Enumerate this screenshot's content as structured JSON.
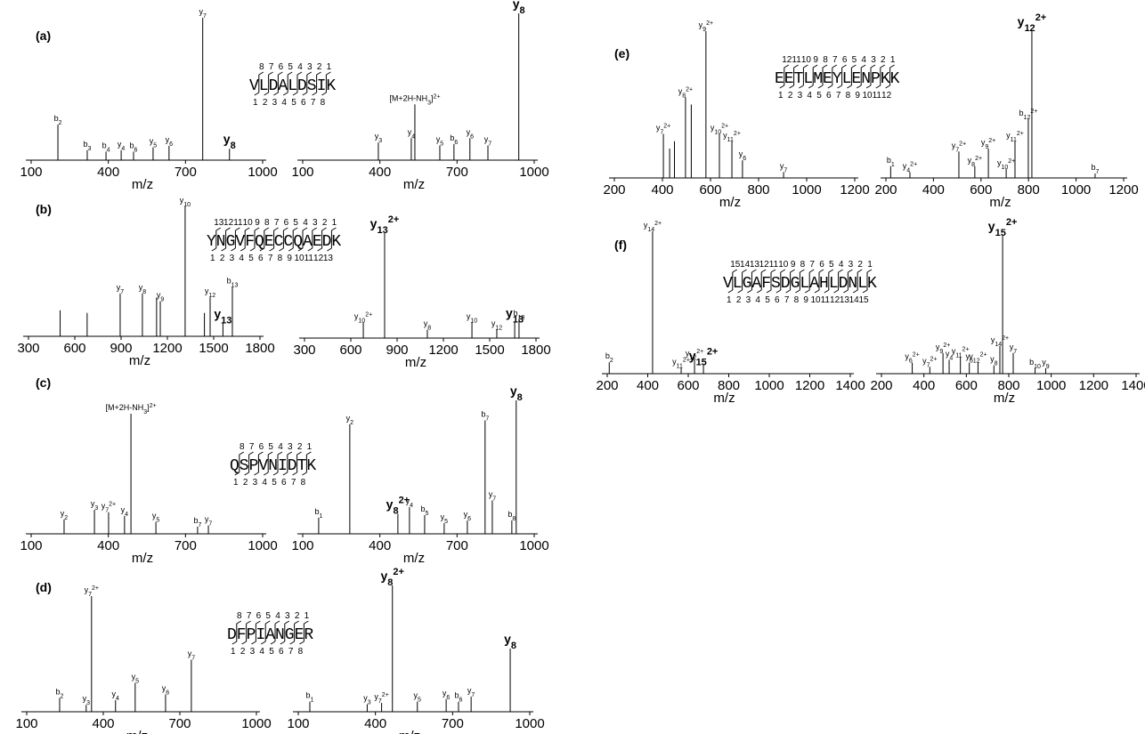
{
  "chart_data": [
    {
      "type": "spectrum",
      "panel": "(a)",
      "xlabel": "m/z",
      "xlim": [
        100,
        1000
      ],
      "xticks": [
        100,
        400,
        700,
        1000
      ],
      "ylim": [
        0,
        100
      ],
      "peaks": [
        {
          "x": 204,
          "y": 25,
          "ion": "b",
          "n": "2"
        },
        {
          "x": 318,
          "y": 7,
          "ion": "b",
          "n": "3"
        },
        {
          "x": 391,
          "y": 6,
          "ion": "b",
          "n": "4"
        },
        {
          "x": 450,
          "y": 7,
          "ion": "y",
          "n": "4"
        },
        {
          "x": 498,
          "y": 6,
          "ion": "b",
          "n": "6"
        },
        {
          "x": 574,
          "y": 9,
          "ion": "y",
          "n": "5"
        },
        {
          "x": 636,
          "y": 10,
          "ion": "y",
          "n": "6"
        },
        {
          "x": 767,
          "y": 100,
          "ion": "y",
          "n": "7"
        },
        {
          "x": 871,
          "y": 8,
          "ion": "y",
          "n": "8",
          "bold": true
        }
      ],
      "sequence": {
        "residues": "VLDALDSIK",
        "y_numbers": [
          8,
          7,
          6,
          5,
          4,
          3,
          2,
          1
        ],
        "b_numbers": [
          1,
          2,
          3,
          4,
          5,
          6,
          7,
          8
        ]
      }
    },
    {
      "type": "spectrum",
      "xlabel": "m/z",
      "xlim": [
        100,
        1000
      ],
      "xticks": [
        100,
        400,
        700,
        1000
      ],
      "ylim": [
        0,
        100
      ],
      "peaks": [
        {
          "x": 394,
          "y": 12,
          "ion": "y",
          "n": "3"
        },
        {
          "x": 522,
          "y": 15,
          "ion": "y",
          "n": "4"
        },
        {
          "x": 536,
          "y": 38,
          "ion": "[M+2H-NH",
          "n": "3",
          "after": "]",
          "charge": "2+"
        },
        {
          "x": 633,
          "y": 10,
          "ion": "y",
          "n": "5"
        },
        {
          "x": 688,
          "y": 11,
          "ion": "b",
          "n": "6"
        },
        {
          "x": 750,
          "y": 15,
          "ion": "y",
          "n": "6"
        },
        {
          "x": 820,
          "y": 10,
          "ion": "y",
          "n": "7"
        },
        {
          "x": 940,
          "y": 100,
          "ion": "y",
          "n": "8",
          "bold": true
        }
      ]
    },
    {
      "type": "spectrum",
      "panel": "(b)",
      "xlabel": "m/z",
      "xlim": [
        300,
        1800
      ],
      "xticks": [
        300,
        600,
        900,
        1200,
        1500,
        1800
      ],
      "ylim": [
        0,
        100
      ],
      "peaks": [
        {
          "x": 505,
          "y": 20
        },
        {
          "x": 680,
          "y": 18
        },
        {
          "x": 894,
          "y": 33,
          "ion": "y",
          "n": "7"
        },
        {
          "x": 1038,
          "y": 33,
          "ion": "y",
          "n": "8"
        },
        {
          "x": 1130,
          "y": 30
        },
        {
          "x": 1154,
          "y": 27,
          "ion": "y",
          "n": "9"
        },
        {
          "x": 1315,
          "y": 100,
          "ion": "y",
          "n": "10"
        },
        {
          "x": 1440,
          "y": 18
        },
        {
          "x": 1477,
          "y": 30,
          "ion": "y",
          "n": "12"
        },
        {
          "x": 1560,
          "y": 10,
          "ion": "y",
          "n": "13",
          "bold": true
        },
        {
          "x": 1621,
          "y": 38,
          "ion": "b",
          "n": "13"
        }
      ],
      "sequence": {
        "residues": "YNGVFQECCQAEDK",
        "y_numbers": [
          13,
          12,
          11,
          10,
          9,
          8,
          7,
          6,
          5,
          4,
          3,
          2,
          1
        ],
        "b_numbers": [
          1,
          2,
          3,
          4,
          5,
          6,
          7,
          8,
          9,
          10,
          11,
          12,
          13
        ]
      }
    },
    {
      "type": "spectrum",
      "xlabel": "m/z",
      "xlim": [
        300,
        1800
      ],
      "xticks": [
        300,
        600,
        900,
        1200,
        1500,
        1800
      ],
      "ylim": [
        0,
        100
      ],
      "peaks": [
        {
          "x": 681,
          "y": 15,
          "ion": "y",
          "n": "10",
          "charge": "2+"
        },
        {
          "x": 819,
          "y": 100,
          "ion": "y",
          "n": "13",
          "charge": "2+",
          "bold": true
        },
        {
          "x": 1096,
          "y": 8,
          "ion": "y",
          "n": "8"
        },
        {
          "x": 1385,
          "y": 15,
          "ion": "y",
          "n": "10"
        },
        {
          "x": 1546,
          "y": 8,
          "ion": "y",
          "n": "12"
        },
        {
          "x": 1662,
          "y": 15,
          "ion": "y",
          "n": "13",
          "bold": true
        },
        {
          "x": 1690,
          "y": 18,
          "ion": "b",
          "n": "13"
        }
      ]
    },
    {
      "type": "spectrum",
      "panel": "(c)",
      "xlabel": "m/z",
      "xlim": [
        100,
        1000
      ],
      "xticks": [
        100,
        400,
        700,
        1000
      ],
      "ylim": [
        0,
        100
      ],
      "peaks": [
        {
          "x": 228,
          "y": 12,
          "ion": "y",
          "n": "2"
        },
        {
          "x": 346,
          "y": 20,
          "ion": "y",
          "n": "3"
        },
        {
          "x": 401,
          "y": 18,
          "ion": "y",
          "n": "7",
          "charge": "2+"
        },
        {
          "x": 463,
          "y": 15,
          "ion": "y",
          "n": "4"
        },
        {
          "x": 488,
          "y": 100,
          "ion": "[M+2H-NH",
          "n": "3",
          "after": "]",
          "charge": "2+"
        },
        {
          "x": 585,
          "y": 10,
          "ion": "y",
          "n": "5"
        },
        {
          "x": 747,
          "y": 6,
          "ion": "b",
          "n": "7"
        },
        {
          "x": 789,
          "y": 7,
          "ion": "y",
          "n": "7"
        }
      ],
      "sequence": {
        "residues": "QSPVNIDTK",
        "y_numbers": [
          8,
          7,
          6,
          5,
          4,
          3,
          2,
          1
        ],
        "b_numbers": [
          1,
          2,
          3,
          4,
          5,
          6,
          7,
          8
        ]
      }
    },
    {
      "type": "spectrum",
      "xlabel": "m/z",
      "xlim": [
        100,
        1000
      ],
      "xticks": [
        100,
        400,
        700,
        1000
      ],
      "ylim": [
        0,
        100
      ],
      "peaks": [
        {
          "x": 162,
          "y": 12,
          "ion": "b",
          "n": "1"
        },
        {
          "x": 283,
          "y": 82,
          "ion": "y",
          "n": "2"
        },
        {
          "x": 470,
          "y": 15,
          "ion": "y",
          "n": "8",
          "charge": "2+",
          "bold": true
        },
        {
          "x": 515,
          "y": 20,
          "ion": "y",
          "n": "4"
        },
        {
          "x": 574,
          "y": 14,
          "ion": "b",
          "n": "5"
        },
        {
          "x": 650,
          "y": 8,
          "ion": "y",
          "n": "5"
        },
        {
          "x": 740,
          "y": 10,
          "ion": "y",
          "n": "6"
        },
        {
          "x": 809,
          "y": 85,
          "ion": "b",
          "n": "7"
        },
        {
          "x": 837,
          "y": 25,
          "ion": "y",
          "n": "7"
        },
        {
          "x": 913,
          "y": 10,
          "ion": "b",
          "n": "8"
        },
        {
          "x": 930,
          "y": 100,
          "ion": "y",
          "n": "8",
          "bold": true
        }
      ]
    },
    {
      "type": "spectrum",
      "panel": "(d)",
      "xlabel": "m/z",
      "xlim": [
        100,
        1000
      ],
      "xticks": [
        100,
        400,
        700,
        1000
      ],
      "ylim": [
        0,
        100
      ],
      "peaks": [
        {
          "x": 229,
          "y": 12,
          "ion": "b",
          "n": "2"
        },
        {
          "x": 333,
          "y": 6,
          "ion": "y",
          "n": "3"
        },
        {
          "x": 354,
          "y": 100,
          "ion": "y",
          "n": "7",
          "charge": "2+"
        },
        {
          "x": 448,
          "y": 10,
          "ion": "y",
          "n": "4"
        },
        {
          "x": 525,
          "y": 25,
          "ion": "y",
          "n": "5"
        },
        {
          "x": 644,
          "y": 15,
          "ion": "y",
          "n": "6"
        },
        {
          "x": 745,
          "y": 45,
          "ion": "y",
          "n": "7"
        }
      ],
      "sequence": {
        "residues": "DFPIANGER",
        "y_numbers": [
          8,
          7,
          6,
          5,
          4,
          3,
          2,
          1
        ],
        "b_numbers": [
          1,
          2,
          3,
          4,
          5,
          6,
          7,
          8
        ]
      }
    },
    {
      "type": "spectrum",
      "xlabel": "m/z",
      "xlim": [
        100,
        1000
      ],
      "xticks": [
        100,
        400,
        700,
        1000
      ],
      "ylim": [
        0,
        100
      ],
      "peaks": [
        {
          "x": 145,
          "y": 8,
          "ion": "b",
          "n": "1"
        },
        {
          "x": 368,
          "y": 6,
          "ion": "y",
          "n": "3"
        },
        {
          "x": 424,
          "y": 7,
          "ion": "y",
          "n": "7",
          "charge": "2+"
        },
        {
          "x": 466,
          "y": 100,
          "ion": "y",
          "n": "8",
          "charge": "2+",
          "bold": true
        },
        {
          "x": 563,
          "y": 8,
          "ion": "y",
          "n": "5"
        },
        {
          "x": 675,
          "y": 10,
          "ion": "y",
          "n": "6"
        },
        {
          "x": 723,
          "y": 8,
          "ion": "b",
          "n": "6"
        },
        {
          "x": 772,
          "y": 12,
          "ion": "y",
          "n": "7"
        },
        {
          "x": 924,
          "y": 50,
          "ion": "y",
          "n": "8",
          "bold": true
        }
      ]
    },
    {
      "type": "spectrum",
      "panel": "(e)",
      "xlabel": "m/z",
      "xlim": [
        200,
        1200
      ],
      "xticks": [
        200,
        400,
        600,
        800,
        1000,
        1200
      ],
      "ylim": [
        0,
        100
      ],
      "peaks": [
        {
          "x": 404,
          "y": 30,
          "ion": "y",
          "n": "7",
          "charge": "2+"
        },
        {
          "x": 430,
          "y": 20
        },
        {
          "x": 450,
          "y": 25
        },
        {
          "x": 496,
          "y": 55,
          "ion": "y",
          "n": "8",
          "charge": "2+"
        },
        {
          "x": 520,
          "y": 50
        },
        {
          "x": 581,
          "y": 100,
          "ion": "y",
          "n": "9",
          "charge": "2+"
        },
        {
          "x": 637,
          "y": 30,
          "ion": "y",
          "n": "10",
          "charge": "2+"
        },
        {
          "x": 689,
          "y": 25,
          "ion": "y",
          "n": "11",
          "charge": "2+"
        },
        {
          "x": 733,
          "y": 12,
          "ion": "y",
          "n": "6"
        },
        {
          "x": 904,
          "y": 4,
          "ion": "y",
          "n": "7"
        }
      ],
      "sequence": {
        "residues": "EETLMEYLENPKK",
        "y_numbers": [
          12,
          11,
          10,
          9,
          8,
          7,
          6,
          5,
          4,
          3,
          2,
          1
        ],
        "b_numbers": [
          1,
          2,
          3,
          4,
          5,
          6,
          7,
          8,
          9,
          10,
          11,
          12
        ]
      }
    },
    {
      "type": "spectrum",
      "xlabel": "m/z",
      "xlim": [
        200,
        1200
      ],
      "xticks": [
        200,
        400,
        600,
        800,
        1000,
        1200
      ],
      "ylim": [
        0,
        100
      ],
      "peaks": [
        {
          "x": 220,
          "y": 8,
          "ion": "b",
          "n": "1"
        },
        {
          "x": 301,
          "y": 4,
          "ion": "y",
          "n": "4",
          "charge": "2+"
        },
        {
          "x": 507,
          "y": 18,
          "ion": "y",
          "n": "7",
          "charge": "2+"
        },
        {
          "x": 574,
          "y": 8,
          "ion": "y",
          "n": "8",
          "charge": "2+"
        },
        {
          "x": 631,
          "y": 20,
          "ion": "y",
          "n": "9",
          "charge": "2+"
        },
        {
          "x": 706,
          "y": 6,
          "ion": "y",
          "n": "10",
          "charge": "2+"
        },
        {
          "x": 743,
          "y": 25,
          "ion": "y",
          "n": "11",
          "charge": "2+"
        },
        {
          "x": 799,
          "y": 40,
          "ion": "b",
          "n": "12",
          "charge": "2+"
        },
        {
          "x": 814,
          "y": 100,
          "ion": "y",
          "n": "12",
          "charge": "2+",
          "bold": true
        },
        {
          "x": 1080,
          "y": 3,
          "ion": "b",
          "n": "7"
        }
      ]
    },
    {
      "type": "spectrum",
      "panel": "(f)",
      "xlabel": "m/z",
      "xlim": [
        200,
        1400
      ],
      "xticks": [
        200,
        400,
        600,
        800,
        1000,
        1200,
        1400
      ],
      "ylim": [
        0,
        100
      ],
      "peaks": [
        {
          "x": 210,
          "y": 8,
          "ion": "b",
          "n": "2"
        },
        {
          "x": 424,
          "y": 100,
          "ion": "y",
          "n": "14",
          "charge": "2+"
        },
        {
          "x": 565,
          "y": 4,
          "ion": "y",
          "n": "11",
          "charge": "2+"
        },
        {
          "x": 631,
          "y": 10,
          "ion": "y",
          "n": "12",
          "charge": "2+"
        },
        {
          "x": 675,
          "y": 6,
          "ion": "y",
          "n": "15",
          "charge": "2+",
          "bold": true
        }
      ],
      "sequence": {
        "residues": "VLGAFSDGLAHLDNLK",
        "y_numbers": [
          15,
          14,
          13,
          12,
          11,
          10,
          9,
          8,
          7,
          6,
          5,
          4,
          3,
          2,
          1
        ],
        "b_numbers": [
          1,
          2,
          3,
          4,
          5,
          6,
          7,
          8,
          9,
          10,
          11,
          12,
          13,
          14,
          15
        ]
      }
    },
    {
      "type": "spectrum",
      "xlabel": "m/z",
      "xlim": [
        200,
        1400
      ],
      "xticks": [
        200,
        400,
        600,
        800,
        1000,
        1200,
        1400
      ],
      "ylim": [
        0,
        100
      ],
      "peaks": [
        {
          "x": 345,
          "y": 8,
          "ion": "y",
          "n": "6",
          "charge": "2+"
        },
        {
          "x": 428,
          "y": 5,
          "ion": "y",
          "n": "7",
          "charge": "2+"
        },
        {
          "x": 490,
          "y": 15,
          "ion": "y",
          "n": "9",
          "charge": "2+"
        },
        {
          "x": 519,
          "y": 10,
          "ion": "y",
          "n": "4"
        },
        {
          "x": 572,
          "y": 12,
          "ion": "y",
          "n": "11",
          "charge": "2+"
        },
        {
          "x": 614,
          "y": 8,
          "ion": "y",
          "n": "5"
        },
        {
          "x": 655,
          "y": 8,
          "ion": "y",
          "n": "12",
          "charge": "2+"
        },
        {
          "x": 730,
          "y": 6,
          "ion": "y",
          "n": "8"
        },
        {
          "x": 758,
          "y": 20,
          "ion": "y",
          "n": "14",
          "charge": "2+"
        },
        {
          "x": 771,
          "y": 100,
          "ion": "y",
          "n": "15",
          "charge": "2+",
          "bold": true
        },
        {
          "x": 821,
          "y": 15,
          "ion": "y",
          "n": "7"
        },
        {
          "x": 924,
          "y": 4,
          "ion": "b",
          "n": "10"
        },
        {
          "x": 974,
          "y": 4,
          "ion": "y",
          "n": "9"
        }
      ]
    }
  ]
}
